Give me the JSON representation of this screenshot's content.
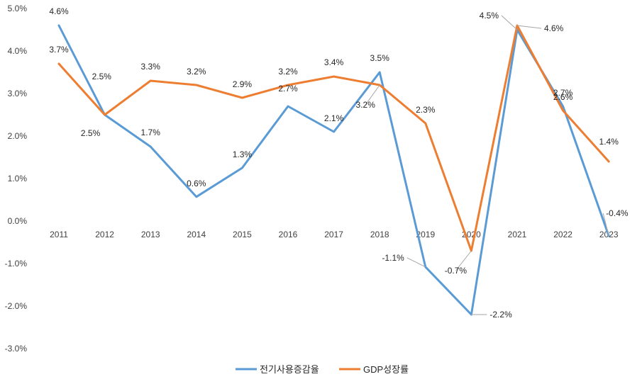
{
  "chart_data": {
    "type": "line",
    "categories": [
      "2011",
      "2012",
      "2013",
      "2014",
      "2015",
      "2016",
      "2017",
      "2018",
      "2019",
      "2020",
      "2021",
      "2022",
      "2023"
    ],
    "series": [
      {
        "name": "전기사용증감율",
        "color": "#5B9BD5",
        "values": [
          4.6,
          2.5,
          1.75,
          0.57,
          1.25,
          2.7,
          2.1,
          3.5,
          -1.08,
          -2.2,
          4.5,
          2.7,
          -0.35
        ],
        "labels": [
          "4.6%",
          "2.5%",
          "1.7%",
          "0.6%",
          "1.3%",
          "2.7%",
          "2.1%",
          "3.5%",
          "-1.1%",
          "-2.2%",
          "4.5%",
          "2.7%",
          "-0.4%"
        ]
      },
      {
        "name": "GDP성장률",
        "color": "#ED7D31",
        "values": [
          3.7,
          2.5,
          3.3,
          3.2,
          2.9,
          3.2,
          3.4,
          3.2,
          2.3,
          -0.7,
          4.6,
          2.6,
          1.4
        ],
        "labels": [
          "3.7%",
          "2.5%",
          "3.3%",
          "3.2%",
          "2.9%",
          "3.2%",
          "3.4%",
          "3.2%",
          "2.3%",
          "-0.7%",
          "4.6%",
          "2.6%",
          "1.4%"
        ]
      }
    ],
    "y_ticks": [
      "5.0%",
      "4.0%",
      "3.0%",
      "2.0%",
      "1.0%",
      "0.0%",
      "-1.0%",
      "-2.0%",
      "-3.0%"
    ],
    "ylim": [
      -3,
      5
    ],
    "title": "",
    "xlabel": "",
    "ylabel": "",
    "legend_position": "bottom",
    "grid": false
  }
}
